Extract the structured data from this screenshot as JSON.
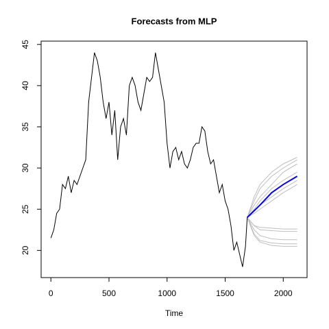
{
  "chart_data": {
    "type": "line",
    "title": "Forecasts from MLP",
    "x_label": "Time",
    "xlim": [
      -84,
      2205
    ],
    "ylim": [
      16.7,
      45.4
    ],
    "xticks": [
      0,
      500,
      1000,
      1500,
      2000
    ],
    "yticks": [
      20,
      25,
      30,
      35,
      40,
      45
    ],
    "grid": false,
    "series": [
      {
        "color": "#bebebe",
        "x": [
          1690,
          1750,
          1800,
          1900,
          2000,
          2120
        ],
        "values": [
          24,
          26.5,
          28,
          29.5,
          30.5,
          31.3
        ]
      },
      {
        "color": "#bebebe",
        "x": [
          1690,
          1750,
          1800,
          1900,
          2000,
          2120
        ],
        "values": [
          24,
          26,
          27.5,
          29,
          30,
          31
        ]
      },
      {
        "color": "#bebebe",
        "x": [
          1690,
          1750,
          1800,
          1900,
          2000,
          2120
        ],
        "values": [
          24,
          25.5,
          26.5,
          28,
          29.5,
          30.5
        ]
      },
      {
        "color": "#bebebe",
        "x": [
          1690,
          1750,
          1800,
          1900,
          2000,
          2120
        ],
        "values": [
          24,
          25,
          26,
          27.5,
          28.5,
          29.5
        ]
      },
      {
        "color": "#bebebe",
        "x": [
          1690,
          1750,
          1800,
          1900,
          2000,
          2120
        ],
        "values": [
          24,
          24.8,
          25.5,
          26.5,
          27.5,
          28.5
        ]
      },
      {
        "color": "#bebebe",
        "x": [
          1690,
          1750,
          1800,
          1900,
          2000,
          2120
        ],
        "values": [
          24,
          24.5,
          25,
          26,
          27,
          28
        ]
      },
      {
        "color": "#bebebe",
        "x": [
          1690,
          1750,
          1800,
          1900,
          2000,
          2120
        ],
        "values": [
          24,
          23,
          22.8,
          22.7,
          22.6,
          22.6
        ]
      },
      {
        "color": "#bebebe",
        "x": [
          1690,
          1750,
          1800,
          1900,
          2000,
          2120
        ],
        "values": [
          24,
          23,
          22.5,
          22.4,
          22.3,
          22.3
        ]
      },
      {
        "color": "#bebebe",
        "x": [
          1690,
          1750,
          1800,
          1900,
          2000,
          2120
        ],
        "values": [
          24,
          22.5,
          21.8,
          21.4,
          21.3,
          21.3
        ]
      },
      {
        "color": "#bebebe",
        "x": [
          1690,
          1750,
          1800,
          1900,
          2000,
          2120
        ],
        "values": [
          24,
          22,
          21.2,
          20.9,
          20.8,
          20.8
        ]
      },
      {
        "color": "#bebebe",
        "x": [
          1690,
          1750,
          1800,
          1900,
          2000,
          2120
        ],
        "values": [
          24,
          21.8,
          21,
          20.6,
          20.5,
          20.5
        ]
      },
      {
        "color": "#000000",
        "x": [
          0,
          25,
          50,
          75,
          100,
          125,
          150,
          175,
          200,
          225,
          250,
          275,
          300,
          325,
          350,
          375,
          400,
          425,
          450,
          475,
          500,
          525,
          550,
          575,
          600,
          625,
          650,
          675,
          700,
          725,
          750,
          775,
          800,
          825,
          850,
          875,
          900,
          925,
          950,
          975,
          1000,
          1025,
          1050,
          1075,
          1100,
          1125,
          1150,
          1175,
          1200,
          1225,
          1250,
          1275,
          1300,
          1325,
          1350,
          1375,
          1400,
          1425,
          1450,
          1475,
          1500,
          1525,
          1550,
          1575,
          1600,
          1625,
          1650,
          1675,
          1690
        ],
        "values": [
          21.5,
          22.5,
          24.5,
          25,
          28,
          27.5,
          29,
          27,
          28.5,
          28,
          29,
          30,
          31,
          38,
          41,
          44,
          43,
          41,
          38,
          36,
          38,
          34,
          37,
          31,
          35,
          36,
          34,
          40,
          41,
          40,
          38,
          37,
          39,
          41,
          40.5,
          41,
          44,
          42,
          40,
          38,
          33,
          30,
          32,
          32.5,
          31,
          32,
          30.5,
          30,
          31,
          32.5,
          33,
          33,
          35,
          34.5,
          32,
          30.5,
          31,
          29,
          27,
          28,
          26,
          25,
          23,
          20,
          21,
          19.5,
          18,
          20.5,
          24
        ]
      },
      {
        "color": "#0000ff",
        "x": [
          1690,
          1800,
          1900,
          2000,
          2120
        ],
        "values": [
          24,
          25.5,
          27,
          28,
          29
        ]
      }
    ]
  }
}
